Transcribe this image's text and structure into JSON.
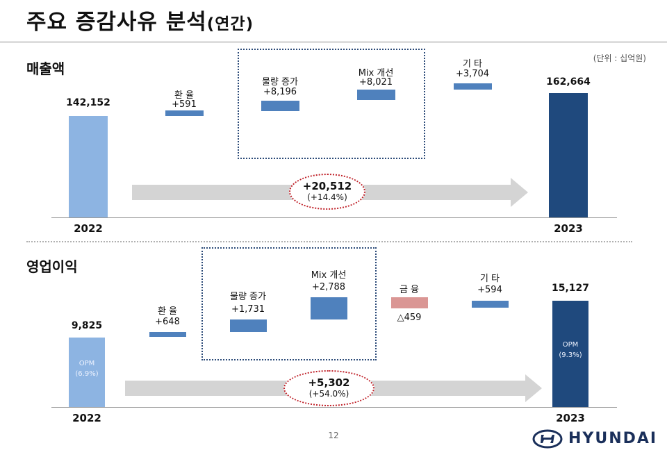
{
  "title": "주요 증감사유 분석",
  "title_sub": "(연간)",
  "unit": "(단위 : 십억원)",
  "page_number": "12",
  "logo": "HYUNDAI",
  "colors": {
    "base_2022": "#8db4e2",
    "base_2023": "#1f497d",
    "increase": "#4f81bd",
    "decrease": "#da9694",
    "arrow": "#d4d4d4",
    "box": "#2b4a78",
    "ellipse": "#c0222a"
  },
  "revenue": {
    "label": "매출액",
    "start": {
      "year": "2022",
      "value": "142,152"
    },
    "end": {
      "year": "2023",
      "value": "162,664"
    },
    "factors": [
      {
        "name": "환  율",
        "value": "+591"
      },
      {
        "name": "물량 증가",
        "value": "+8,196"
      },
      {
        "name": "Mix 개선",
        "value": "+8,021"
      },
      {
        "name": "기  타",
        "value": "+3,704"
      }
    ],
    "change": "+20,512",
    "change_pct": "(+14.4%)"
  },
  "operating_profit": {
    "label": "영업이익",
    "start": {
      "year": "2022",
      "value": "9,825",
      "opm_label": "OPM",
      "opm": "(6.9%)"
    },
    "end": {
      "year": "2023",
      "value": "15,127",
      "opm_label": "OPM",
      "opm": "(9.3%)"
    },
    "factors": [
      {
        "name": "환 율",
        "value": "+648"
      },
      {
        "name": "물량 증가",
        "value": "+1,731"
      },
      {
        "name": "Mix 개선",
        "value": "+2,788"
      },
      {
        "name": "금  융",
        "value": "△459"
      },
      {
        "name": "기  타",
        "value": "+594"
      }
    ],
    "change": "+5,302",
    "change_pct": "(+54.0%)"
  },
  "chart_data": [
    {
      "type": "bar",
      "categories": [
        "2022",
        "환  율",
        "물량 증가",
        "Mix 개선",
        "기  타",
        "2023"
      ],
      "values": [
        142152,
        591,
        8196,
        8021,
        3704,
        162664
      ],
      "title": "매출액"
    },
    {
      "type": "bar",
      "categories": [
        "2022",
        "환 율",
        "물량 증가",
        "Mix 개선",
        "금  융",
        "기  타",
        "2023"
      ],
      "values": [
        9825,
        648,
        1731,
        2788,
        -459,
        594,
        15127
      ],
      "title": "영업이익"
    }
  ]
}
